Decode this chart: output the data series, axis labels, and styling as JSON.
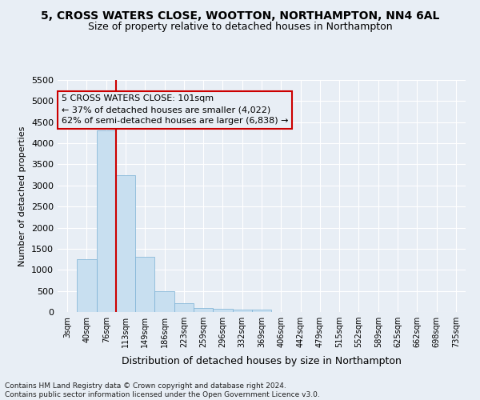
{
  "title1": "5, CROSS WATERS CLOSE, WOOTTON, NORTHAMPTON, NN4 6AL",
  "title2": "Size of property relative to detached houses in Northampton",
  "xlabel": "Distribution of detached houses by size in Northampton",
  "ylabel": "Number of detached properties",
  "footer": "Contains HM Land Registry data © Crown copyright and database right 2024.\nContains public sector information licensed under the Open Government Licence v3.0.",
  "annotation_title": "5 CROSS WATERS CLOSE: 101sqm",
  "annotation_line1": "← 37% of detached houses are smaller (4,022)",
  "annotation_line2": "62% of semi-detached houses are larger (6,838) →",
  "bar_labels": [
    "3sqm",
    "40sqm",
    "76sqm",
    "113sqm",
    "149sqm",
    "186sqm",
    "223sqm",
    "259sqm",
    "296sqm",
    "332sqm",
    "369sqm",
    "406sqm",
    "442sqm",
    "479sqm",
    "515sqm",
    "552sqm",
    "589sqm",
    "625sqm",
    "662sqm",
    "698sqm",
    "735sqm"
  ],
  "bar_values": [
    0,
    1250,
    4300,
    3250,
    1300,
    500,
    200,
    100,
    75,
    60,
    55,
    0,
    0,
    0,
    0,
    0,
    0,
    0,
    0,
    0,
    0
  ],
  "bar_color": "#c8dff0",
  "bar_edge_color": "#7ab0d4",
  "bar_width": 1.0,
  "vline_x": 2.5,
  "vline_color": "#cc0000",
  "ylim": [
    0,
    5500
  ],
  "yticks": [
    0,
    500,
    1000,
    1500,
    2000,
    2500,
    3000,
    3500,
    4000,
    4500,
    5000,
    5500
  ],
  "background_color": "#e8eef5",
  "grid_color": "#ffffff",
  "title1_fontsize": 10,
  "title2_fontsize": 9,
  "xlabel_fontsize": 9,
  "ylabel_fontsize": 8,
  "annotation_fontsize": 8,
  "footer_fontsize": 6.5
}
